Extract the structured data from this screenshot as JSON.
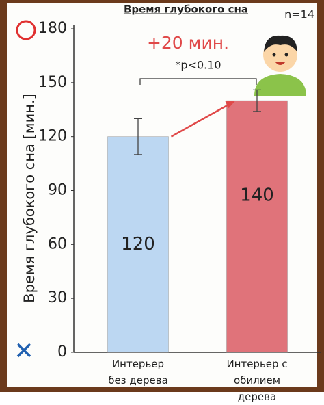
{
  "chart_data": {
    "type": "bar",
    "title": "Время глубокого сна",
    "note": "n=14",
    "y_label": "Время глубокого сна [мин.]",
    "categories": [
      "Интерьер без дерева",
      "Интерьер с обилием дерева"
    ],
    "values": [
      120,
      140
    ],
    "errors": [
      10,
      6
    ],
    "colors": [
      "#bcd7f2",
      "#e0737a"
    ],
    "ylim": [
      0,
      180
    ],
    "yticks": [
      0,
      30,
      60,
      90,
      120,
      150,
      180
    ],
    "annotations": [
      "+20 мин.",
      "*p<0.10"
    ]
  }
}
